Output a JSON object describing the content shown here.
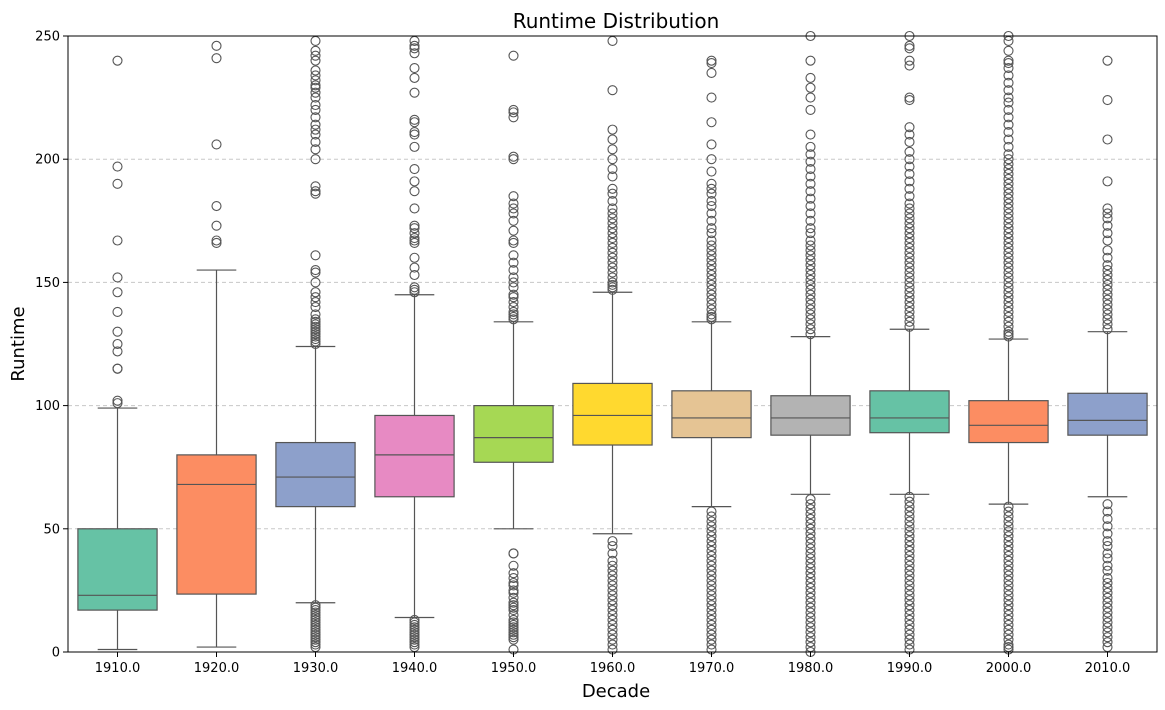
{
  "chart_data": {
    "type": "box",
    "title": "Runtime Distribution",
    "xlabel": "Decade",
    "ylabel": "Runtime",
    "ylim": [
      0,
      250
    ],
    "yticks": [
      0,
      50,
      100,
      150,
      200,
      250
    ],
    "grid": "horizontal dashed",
    "categories": [
      "1910.0",
      "1920.0",
      "1930.0",
      "1940.0",
      "1950.0",
      "1960.0",
      "1970.0",
      "1980.0",
      "1990.0",
      "2000.0",
      "2010.0"
    ],
    "boxes": [
      {
        "color": "#66c2a5",
        "whisker_low": 1,
        "q1": 17,
        "median": 23,
        "q3": 50,
        "whisker_high": 99,
        "outliers": [
          101,
          102,
          115,
          115,
          122,
          125,
          130,
          138,
          146,
          152,
          167,
          190,
          197,
          240
        ]
      },
      {
        "color": "#fc8d62",
        "whisker_low": 2,
        "q1": 23.5,
        "median": 68,
        "q3": 80,
        "whisker_high": 155,
        "outliers": [
          166,
          167,
          173,
          181,
          206,
          241,
          246
        ]
      },
      {
        "color": "#8da0cb",
        "whisker_low": 20,
        "q1": 59,
        "median": 71,
        "q3": 85,
        "whisker_high": 124,
        "outliers": [
          2,
          3,
          4,
          5,
          6,
          7,
          8,
          9,
          10,
          11,
          12,
          13,
          14,
          15,
          16,
          17,
          18,
          19,
          125,
          126,
          127,
          128,
          129,
          130,
          131,
          132,
          133,
          134,
          135,
          137,
          140,
          142,
          144,
          146,
          150,
          154,
          155,
          161,
          186,
          187,
          189,
          200,
          204,
          207,
          210,
          212,
          214,
          217,
          220,
          222,
          225,
          227,
          229,
          230,
          232,
          234,
          236,
          240,
          242,
          244,
          248
        ]
      },
      {
        "color": "#e78ac3",
        "whisker_low": 14,
        "q1": 63,
        "median": 80,
        "q3": 96,
        "whisker_high": 145,
        "outliers": [
          2,
          3,
          4,
          5,
          6,
          7,
          8,
          9,
          10,
          11,
          12,
          13,
          146,
          147,
          148,
          153,
          156,
          160,
          166,
          167,
          168,
          170,
          172,
          173,
          180,
          187,
          191,
          196,
          205,
          210,
          211,
          215,
          216,
          227,
          233,
          237,
          243,
          245,
          246,
          248
        ]
      },
      {
        "color": "#a6d854",
        "whisker_low": 50,
        "q1": 77,
        "median": 87,
        "q3": 100,
        "whisker_high": 134,
        "outliers": [
          1,
          5,
          6,
          7,
          8,
          9,
          10,
          11,
          12,
          13,
          15,
          17,
          18,
          19,
          20,
          22,
          24,
          25,
          27,
          28,
          30,
          32,
          35,
          40,
          40,
          135,
          136,
          137,
          138,
          140,
          142,
          144,
          145,
          148,
          150,
          152,
          155,
          158,
          161,
          166,
          167,
          171,
          175,
          178,
          180,
          182,
          185,
          200,
          201,
          217,
          219,
          220,
          242
        ]
      },
      {
        "color": "#ffd92f",
        "whisker_low": 48,
        "q1": 84,
        "median": 96,
        "q3": 109,
        "whisker_high": 146,
        "outliers": [
          1,
          3,
          5,
          7,
          9,
          11,
          13,
          15,
          17,
          19,
          21,
          23,
          25,
          27,
          29,
          31,
          33,
          35,
          37,
          40,
          43,
          45,
          147,
          148,
          149,
          150,
          152,
          154,
          156,
          158,
          160,
          162,
          164,
          166,
          168,
          170,
          172,
          174,
          176,
          178,
          180,
          183,
          186,
          188,
          193,
          196,
          200,
          204,
          208,
          212,
          228,
          248
        ]
      },
      {
        "color": "#e5c494",
        "whisker_low": 59,
        "q1": 87,
        "median": 95,
        "q3": 106,
        "whisker_high": 134,
        "outliers": [
          1,
          3,
          5,
          7,
          9,
          11,
          13,
          15,
          17,
          19,
          21,
          23,
          25,
          27,
          29,
          31,
          33,
          35,
          37,
          39,
          41,
          43,
          45,
          47,
          49,
          51,
          53,
          55,
          57,
          135,
          136,
          137,
          139,
          141,
          143,
          145,
          147,
          149,
          151,
          153,
          155,
          157,
          159,
          161,
          163,
          165,
          167,
          170,
          172,
          175,
          178,
          181,
          183,
          186,
          188,
          190,
          195,
          200,
          206,
          215,
          225,
          235,
          239,
          240
        ]
      },
      {
        "color": "#b3b3b3",
        "whisker_low": 64,
        "q1": 88,
        "median": 95,
        "q3": 104,
        "whisker_high": 128,
        "outliers": [
          0,
          2,
          4,
          6,
          8,
          10,
          12,
          14,
          16,
          18,
          20,
          22,
          24,
          26,
          28,
          30,
          32,
          34,
          36,
          38,
          40,
          42,
          44,
          46,
          48,
          50,
          52,
          54,
          56,
          58,
          60,
          62,
          129,
          131,
          133,
          135,
          137,
          139,
          141,
          143,
          145,
          147,
          149,
          151,
          153,
          155,
          157,
          159,
          161,
          163,
          165,
          167,
          170,
          172,
          175,
          178,
          181,
          184,
          187,
          190,
          193,
          196,
          199,
          202,
          205,
          210,
          220,
          225,
          229,
          233,
          240,
          250
        ]
      },
      {
        "color": "#66c2a5",
        "whisker_low": 64,
        "q1": 89,
        "median": 95,
        "q3": 106,
        "whisker_high": 131,
        "outliers": [
          1,
          3,
          5,
          7,
          9,
          11,
          13,
          15,
          17,
          19,
          21,
          23,
          25,
          27,
          29,
          31,
          33,
          35,
          37,
          39,
          41,
          43,
          45,
          47,
          49,
          51,
          53,
          55,
          57,
          59,
          61,
          63,
          132,
          134,
          136,
          138,
          140,
          142,
          144,
          146,
          148,
          150,
          152,
          154,
          156,
          158,
          160,
          162,
          164,
          166,
          168,
          170,
          172,
          174,
          176,
          178,
          180,
          182,
          185,
          188,
          191,
          194,
          197,
          200,
          203,
          207,
          210,
          213,
          224,
          225,
          238,
          240,
          245,
          246,
          250
        ]
      },
      {
        "color": "#fc8d62",
        "whisker_low": 60,
        "q1": 85,
        "median": 92,
        "q3": 102,
        "whisker_high": 127,
        "outliers": [
          1,
          2,
          3,
          5,
          7,
          9,
          11,
          13,
          15,
          17,
          19,
          21,
          23,
          25,
          27,
          29,
          31,
          33,
          35,
          37,
          39,
          41,
          43,
          45,
          47,
          49,
          51,
          53,
          55,
          57,
          59,
          128,
          129,
          130,
          132,
          134,
          136,
          138,
          140,
          142,
          144,
          146,
          148,
          150,
          152,
          154,
          156,
          158,
          160,
          162,
          164,
          166,
          168,
          170,
          172,
          174,
          176,
          178,
          180,
          182,
          184,
          186,
          188,
          190,
          192,
          194,
          196,
          198,
          200,
          202,
          205,
          208,
          211,
          214,
          217,
          220,
          223,
          225,
          228,
          231,
          234,
          237,
          239,
          240,
          244,
          248,
          250
        ]
      },
      {
        "color": "#8da0cb",
        "whisker_low": 63,
        "q1": 88,
        "median": 94,
        "q3": 105,
        "whisker_high": 130,
        "outliers": [
          2,
          4,
          6,
          8,
          10,
          12,
          14,
          16,
          18,
          20,
          22,
          24,
          26,
          28,
          30,
          33,
          35,
          38,
          40,
          43,
          45,
          48,
          51,
          54,
          57,
          60,
          131,
          133,
          135,
          137,
          139,
          141,
          143,
          145,
          147,
          149,
          151,
          153,
          155,
          157,
          160,
          163,
          167,
          170,
          173,
          176,
          178,
          180,
          191,
          208,
          224,
          240
        ]
      }
    ]
  }
}
